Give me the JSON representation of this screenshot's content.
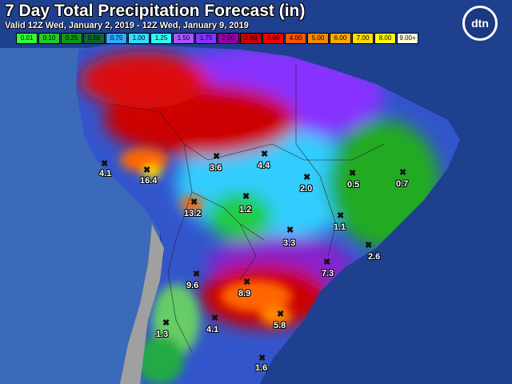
{
  "header": {
    "title": "7 Day Total Precipitation Forecast (in)",
    "subtitle": "Valid 12Z Wed, January 2, 2019 - 12Z Wed, January 9, 2019",
    "logo": "dtn"
  },
  "legend": [
    {
      "label": "0.01",
      "color": "#33ff33"
    },
    {
      "label": "0.10",
      "color": "#22cc22"
    },
    {
      "label": "0.25",
      "color": "#119911"
    },
    {
      "label": "0.50",
      "color": "#116633"
    },
    {
      "label": "0.75",
      "color": "#33aaff"
    },
    {
      "label": "1.00",
      "color": "#33ddff"
    },
    {
      "label": "1.25",
      "color": "#33ffee"
    },
    {
      "label": "1.50",
      "color": "#aa55ff"
    },
    {
      "label": "1.75",
      "color": "#8833ff"
    },
    {
      "label": "2.00",
      "color": "#9900aa"
    },
    {
      "label": "2.50",
      "color": "#cc0000"
    },
    {
      "label": "3.00",
      "color": "#ff0000"
    },
    {
      "label": "4.00",
      "color": "#ff5500"
    },
    {
      "label": "5.00",
      "color": "#ff8800"
    },
    {
      "label": "6.00",
      "color": "#ffaa00"
    },
    {
      "label": "7.00",
      "color": "#ffdd00"
    },
    {
      "label": "8.00",
      "color": "#ffff00"
    },
    {
      "label": "9.00+",
      "color": "#ffffdd"
    }
  ],
  "cities": [
    {
      "name": "point-4-1-peru-coast",
      "value": "4.1"
    },
    {
      "name": "point-16-4",
      "value": "16.4"
    },
    {
      "name": "point-3-6",
      "value": "3.6"
    },
    {
      "name": "point-4-4",
      "value": "4.4"
    },
    {
      "name": "point-2-0",
      "value": "2.0"
    },
    {
      "name": "point-0-5",
      "value": "0.5"
    },
    {
      "name": "point-0-7",
      "value": "0.7"
    },
    {
      "name": "point-13-2",
      "value": "13.2"
    },
    {
      "name": "point-1-2",
      "value": "1.2"
    },
    {
      "name": "point-1-1",
      "value": "1.1"
    },
    {
      "name": "point-3-3",
      "value": "3.3"
    },
    {
      "name": "point-2-6",
      "value": "2.6"
    },
    {
      "name": "point-7-3",
      "value": "7.3"
    },
    {
      "name": "point-9-6",
      "value": "9.6"
    },
    {
      "name": "point-8-9",
      "value": "8.9"
    },
    {
      "name": "point-5-8",
      "value": "5.8"
    },
    {
      "name": "point-1-3",
      "value": "1.3"
    },
    {
      "name": "point-4-1-argentina",
      "value": "4.1"
    },
    {
      "name": "point-1-6",
      "value": "1.6"
    }
  ]
}
